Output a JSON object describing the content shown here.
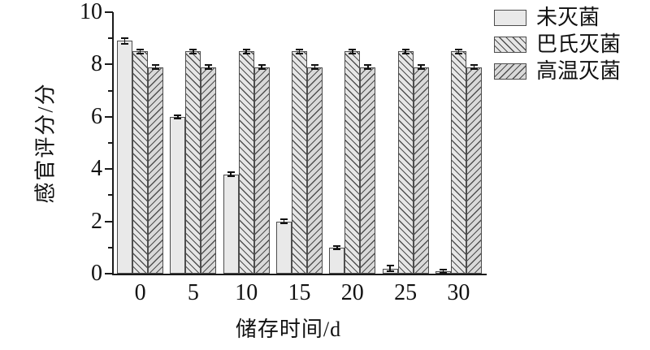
{
  "chart_data": {
    "type": "bar",
    "title": "",
    "categories": [
      "0",
      "5",
      "10",
      "15",
      "20",
      "25",
      "30"
    ],
    "xlabel": "储存时间/d",
    "ylabel": "感官评分/分",
    "ylim": [
      0,
      10
    ],
    "y_major_ticks": [
      0,
      2,
      4,
      6,
      8,
      10
    ],
    "y_minor_ticks": [
      1,
      3,
      5,
      7,
      9
    ],
    "grid": false,
    "legend_position": "top-right",
    "series": [
      {
        "name": "未灭菌",
        "pattern": "solid",
        "fill": "#e9e9e9",
        "values": [
          8.9,
          6.0,
          3.8,
          2.0,
          1.0,
          0.2,
          0.1
        ],
        "errors": [
          0.15,
          0.1,
          0.1,
          0.12,
          0.1,
          0.15,
          0.1
        ]
      },
      {
        "name": "巴氏灭菌",
        "pattern": "diagonal-forward-hatch",
        "fill": "#e6e6e6",
        "values": [
          8.5,
          8.5,
          8.5,
          8.5,
          8.5,
          8.5,
          8.5
        ],
        "errors": [
          0.1,
          0.1,
          0.1,
          0.1,
          0.1,
          0.1,
          0.1
        ]
      },
      {
        "name": "高温灭菌",
        "pattern": "diagonal-backward-hatch",
        "fill": "#d9d9d9",
        "values": [
          7.9,
          7.9,
          7.9,
          7.9,
          7.9,
          7.9,
          7.9
        ],
        "errors": [
          0.1,
          0.1,
          0.1,
          0.1,
          0.1,
          0.1,
          0.1
        ]
      }
    ]
  },
  "colors": {
    "background": "#ffffff",
    "axis": "#1a1a1a",
    "bar_border": "#4d4d4d",
    "hatch_line": "#4f4f4f",
    "error_bar": "#111111"
  }
}
